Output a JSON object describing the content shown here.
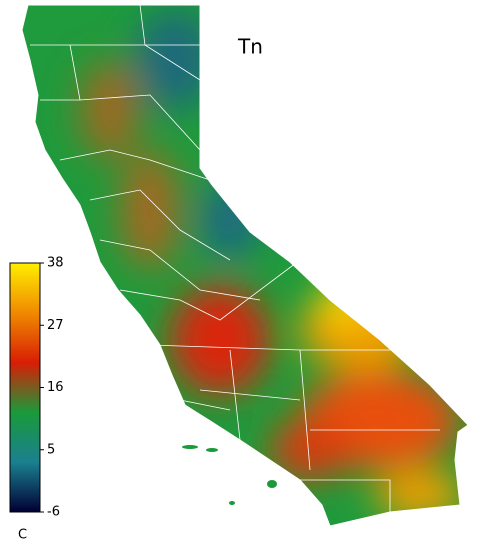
{
  "map": {
    "title": "Tn",
    "colorbar": {
      "unit": "C",
      "range": [
        -6,
        38
      ],
      "ticks": [
        38,
        27,
        16,
        5,
        -6
      ],
      "colors": [
        "#000033",
        "#1a8090",
        "#1a9a3a",
        "#d81e05",
        "#f08a00",
        "#ffee00"
      ]
    }
  }
}
